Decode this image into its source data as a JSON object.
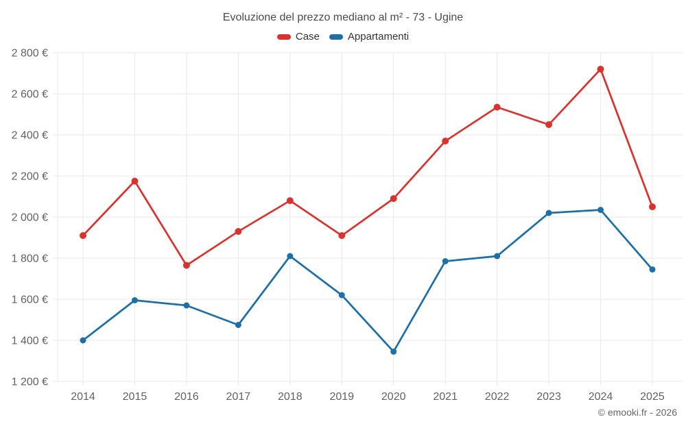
{
  "title": "Evoluzione del prezzo mediano al m² - 73 - Ugine",
  "legend": {
    "items": [
      {
        "label": "Case",
        "color": "#d8342f"
      },
      {
        "label": "Appartamenti",
        "color": "#1d6fa5"
      }
    ]
  },
  "footer": {
    "credit": "© emooki.fr - 2026"
  },
  "colors": {
    "case_line": "#d8342f",
    "apartments_line": "#1d6fa5",
    "grid": "#e7e7e7",
    "axis_label": "#616161",
    "title_text": "#4a4a4a"
  },
  "chart_data": {
    "type": "line",
    "title": "Evoluzione del prezzo mediano al m² - 73 - Ugine",
    "x": [
      2014,
      2015,
      2016,
      2017,
      2018,
      2019,
      2020,
      2021,
      2022,
      2023,
      2024,
      2025
    ],
    "series": [
      {
        "name": "Case",
        "color": "#d8342f",
        "marker_radius": 5,
        "values": [
          1910,
          2175,
          1765,
          1930,
          2080,
          1910,
          2090,
          2370,
          2535,
          2450,
          2720,
          2050
        ]
      },
      {
        "name": "Appartamenti",
        "color": "#1d6fa5",
        "marker_radius": 4.5,
        "values": [
          1400,
          1595,
          1570,
          1475,
          1810,
          1620,
          1345,
          1785,
          1810,
          2020,
          2035,
          1745
        ]
      }
    ],
    "xlabel": "",
    "ylabel": "",
    "ylim": [
      1200,
      2800
    ],
    "ytick_step": 200,
    "ytick_labels": [
      "1 200 €",
      "1 400 €",
      "1 600 €",
      "1 800 €",
      "2 000 €",
      "2 200 €",
      "2 400 €",
      "2 600 €",
      "2 800 €"
    ],
    "grid": true,
    "legend_position": "top",
    "unit": "€"
  }
}
